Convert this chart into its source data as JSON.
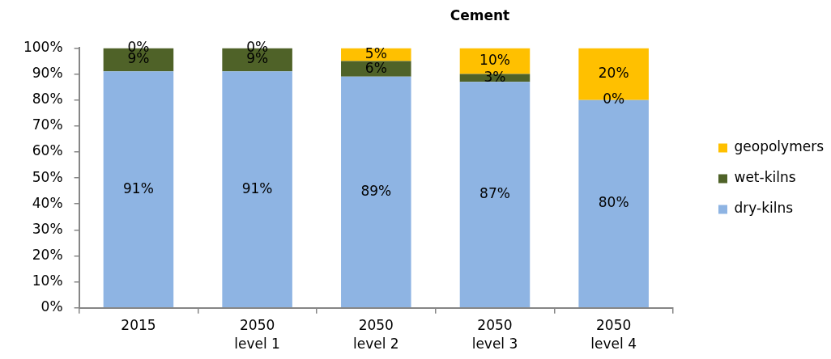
{
  "chart_data": {
    "type": "bar",
    "title": "Cement",
    "categories": [
      "2015",
      "2050 level 1",
      "2050 level 2",
      "2050 level 3",
      "2050 level 4"
    ],
    "series": [
      {
        "name": "dry-kilns",
        "color": "#8eb4e3",
        "values": [
          91,
          91,
          89,
          87,
          80
        ],
        "value_labels": [
          "91%",
          "91%",
          "89%",
          "87%",
          "80%"
        ]
      },
      {
        "name": "wet-kilns",
        "color": "#4f6228",
        "values": [
          9,
          9,
          6,
          3,
          0
        ],
        "value_labels": [
          "9%",
          "9%",
          "6%",
          "3%",
          "0%"
        ]
      },
      {
        "name": "geopolymers",
        "color": "#ffc000",
        "values": [
          0,
          0,
          5,
          10,
          20
        ],
        "value_labels": [
          "0%",
          "0%",
          "5%",
          "10%",
          "20%"
        ]
      }
    ],
    "stacked": true,
    "ylim": [
      0,
      100
    ],
    "yticks": [
      {
        "value": 0,
        "label": "0%"
      },
      {
        "value": 10,
        "label": "10%"
      },
      {
        "value": 20,
        "label": "20%"
      },
      {
        "value": 30,
        "label": "30%"
      },
      {
        "value": 40,
        "label": "40%"
      },
      {
        "value": 50,
        "label": "50%"
      },
      {
        "value": 60,
        "label": "60%"
      },
      {
        "value": 70,
        "label": "70%"
      },
      {
        "value": 80,
        "label": "80%"
      },
      {
        "value": 90,
        "label": "90%"
      },
      {
        "value": 100,
        "label": "100%"
      }
    ],
    "grid": false,
    "legend": "right"
  }
}
